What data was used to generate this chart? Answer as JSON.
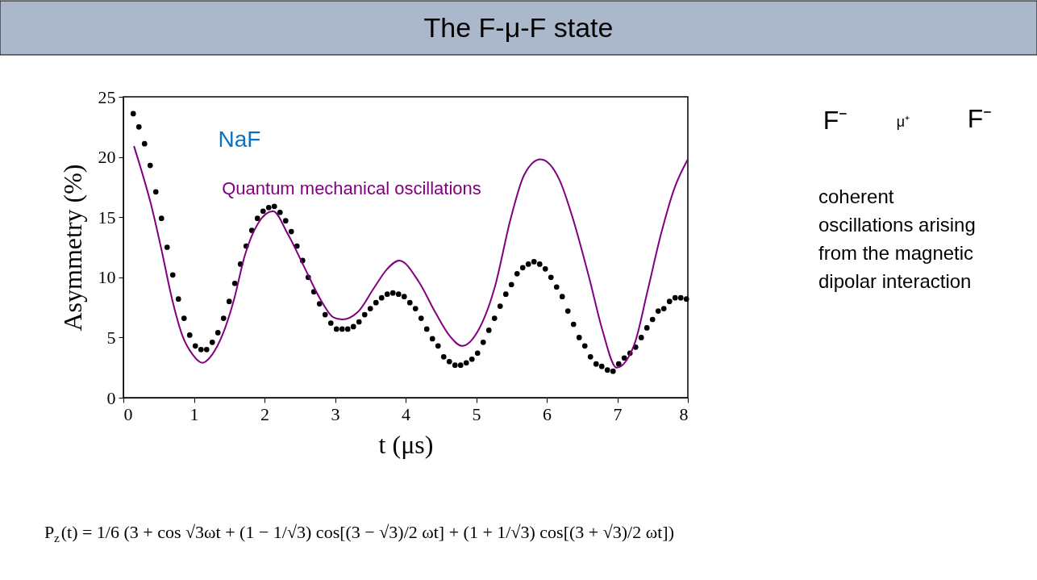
{
  "chart_data": {
    "type": "scatter",
    "title": "The F-μ-F state",
    "xlabel": "t (μs)",
    "ylabel": "Asymmetry (%)",
    "xlim": [
      0,
      8
    ],
    "ylim": [
      0,
      25
    ],
    "xticks": [
      0,
      1,
      2,
      3,
      4,
      5,
      6,
      7,
      8
    ],
    "yticks": [
      0,
      5,
      10,
      15,
      20,
      25
    ],
    "grid": false,
    "series": [
      {
        "marker": "circle",
        "color": "#000000",
        "x": [
          0.14,
          0.22,
          0.3,
          0.38,
          0.46,
          0.54,
          0.62,
          0.7,
          0.78,
          0.86,
          0.94,
          1.02,
          1.1,
          1.18,
          1.26,
          1.34,
          1.42,
          1.5,
          1.58,
          1.66,
          1.74,
          1.82,
          1.9,
          1.98,
          2.06,
          2.14,
          2.22,
          2.3,
          2.38,
          2.46,
          2.54,
          2.62,
          2.7,
          2.78,
          2.86,
          2.94,
          3.02,
          3.1,
          3.18,
          3.26,
          3.34,
          3.42,
          3.5,
          3.58,
          3.66,
          3.74,
          3.82,
          3.9,
          3.98,
          4.06,
          4.14,
          4.22,
          4.3,
          4.38,
          4.46,
          4.54,
          4.62,
          4.7,
          4.78,
          4.86,
          4.94,
          5.02,
          5.1,
          5.18,
          5.26,
          5.34,
          5.42,
          5.5,
          5.58,
          5.66,
          5.74,
          5.82,
          5.9,
          5.98,
          6.06,
          6.14,
          6.22,
          6.3,
          6.38,
          6.46,
          6.54,
          6.62,
          6.7,
          6.78,
          6.86,
          6.94,
          7.02,
          7.1,
          7.18,
          7.26,
          7.34,
          7.42,
          7.5,
          7.58,
          7.66,
          7.74,
          7.82,
          7.9,
          7.98
        ],
        "values": [
          23.6,
          22.5,
          21.1,
          19.3,
          17.1,
          14.9,
          12.5,
          10.2,
          8.2,
          6.6,
          5.2,
          4.3,
          4.0,
          4.0,
          4.6,
          5.4,
          6.6,
          8.0,
          9.5,
          11.1,
          12.6,
          13.9,
          14.9,
          15.5,
          15.8,
          15.9,
          15.4,
          14.7,
          13.8,
          12.6,
          11.4,
          10.0,
          8.8,
          7.8,
          6.9,
          6.2,
          5.7,
          5.7,
          5.7,
          5.9,
          6.3,
          6.9,
          7.4,
          7.9,
          8.3,
          8.6,
          8.7,
          8.6,
          8.4,
          7.9,
          7.4,
          6.6,
          5.7,
          4.9,
          4.3,
          3.4,
          3.0,
          2.7,
          2.7,
          2.9,
          3.2,
          3.7,
          4.6,
          5.6,
          6.6,
          7.6,
          8.6,
          9.4,
          10.3,
          10.8,
          11.1,
          11.3,
          11.1,
          10.7,
          10.0,
          9.2,
          8.4,
          7.2,
          6.1,
          5.0,
          4.3,
          3.4,
          2.8,
          2.6,
          2.3,
          2.2,
          2.8,
          3.3,
          3.7,
          4.2,
          5.0,
          5.8,
          6.5,
          7.2,
          7.4,
          8.0,
          8.3,
          8.3,
          8.2
        ]
      },
      {
        "type": "line",
        "name": "Quantum mechanical oscillations",
        "color": "#800080",
        "line_style": "solid",
        "marker": "none",
        "x": [
          0.15,
          0.25,
          0.39,
          0.54,
          0.69,
          0.84,
          0.98,
          1.12,
          1.26,
          1.41,
          1.57,
          1.72,
          1.91,
          2.12,
          2.33,
          2.56,
          2.79,
          2.97,
          3.1,
          3.32,
          3.55,
          3.74,
          3.91,
          4.19,
          4.42,
          4.63,
          4.8,
          5.03,
          5.26,
          5.49,
          5.68,
          5.91,
          6.18,
          6.37,
          6.6,
          6.79,
          6.99,
          7.24,
          7.43,
          7.62,
          7.81,
          8.0
        ],
        "values": [
          20.9,
          19.0,
          16.1,
          12.3,
          8.2,
          5.1,
          3.6,
          2.9,
          3.6,
          5.3,
          8.2,
          11.8,
          14.5,
          15.5,
          13.6,
          10.9,
          8.2,
          6.7,
          6.5,
          7.1,
          9.1,
          10.7,
          11.4,
          9.6,
          7.1,
          5.1,
          4.3,
          5.6,
          9.1,
          14.9,
          18.5,
          19.8,
          18.1,
          14.9,
          10.0,
          5.6,
          2.5,
          4.4,
          8.9,
          13.6,
          17.4,
          19.8
        ]
      }
    ],
    "annotations": [
      "NaF",
      "coherent\noscillations arising\nfrom the magnetic\ndipolar interaction",
      "F⁻",
      "μ⁺",
      "F⁻",
      "P$_{z}$(t) = 1/6 (3 + cos √3ωt + (1 − 1/√3) cos[(3 − √3)/2 ωt] + (1 + 1/√3) cos[(3 + √3)/2 ωt])"
    ]
  }
}
